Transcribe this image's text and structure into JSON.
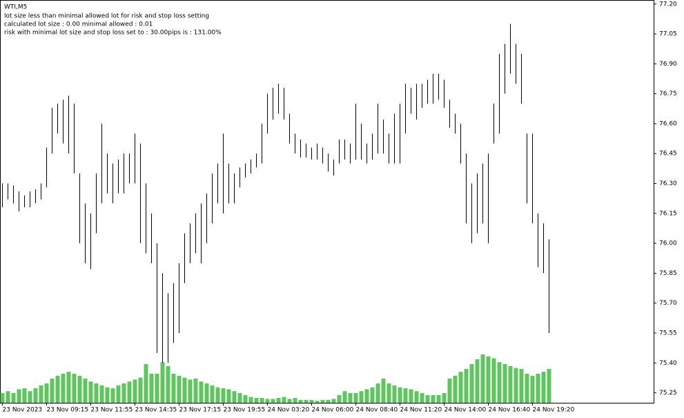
{
  "chart_data": {
    "type": "range_bar",
    "title": "WTI,M5",
    "notes": [
      "lot size less than minimal allowed lot for risk and stop loss setting",
      "calculated lot size : 0.00 minimal allowed : 0.01",
      "risk with minimal lot size and stop loss set to : 30.00pips is : 131.00%"
    ],
    "color": "#000000",
    "volume_color": "#5fc65f",
    "ylim": [
      75.2,
      77.22
    ],
    "yticks": [
      {
        "value": 77.2,
        "label": "77.20"
      },
      77.05,
      {
        "value": 76.9,
        "label": "76.90"
      },
      76.75,
      {
        "value": 76.6,
        "label": "76.60"
      },
      76.45,
      {
        "value": 76.3,
        "label": "76.30"
      },
      76.15,
      {
        "value": 76.0,
        "label": "76.00"
      },
      75.85,
      {
        "value": 75.7,
        "label": "75.70"
      },
      75.55,
      {
        "value": 75.4,
        "label": "75.40"
      },
      75.25
    ],
    "xticks": [
      {
        "value": 0,
        "label": "23 Nov 2023"
      },
      {
        "value": 8,
        "label": "23 Nov 09:15"
      },
      {
        "value": 16,
        "label": "23 Nov 11:55"
      },
      {
        "value": 24,
        "label": "23 Nov 14:35"
      },
      {
        "value": 32,
        "label": "23 Nov 17:15"
      },
      {
        "value": 40,
        "label": "23 Nov 19:55"
      },
      {
        "value": 48,
        "label": "24 Nov 03:20"
      },
      {
        "value": 56,
        "label": "24 Nov 06:00"
      },
      {
        "value": 64,
        "label": "24 Nov 08:40"
      },
      {
        "value": 72,
        "label": "24 Nov 11:20"
      },
      {
        "value": 80,
        "label": "24 Nov 14:00"
      },
      {
        "value": 88,
        "label": "24 Nov 16:40"
      },
      {
        "value": 96,
        "label": "24 Nov 19:20"
      }
    ],
    "high": [
      76.3,
      76.3,
      76.29,
      76.26,
      76.24,
      76.26,
      76.27,
      76.3,
      76.48,
      76.68,
      76.7,
      76.72,
      76.74,
      76.7,
      76.35,
      76.2,
      76.15,
      76.35,
      76.6,
      76.45,
      76.4,
      76.42,
      76.45,
      76.45,
      76.55,
      76.5,
      76.3,
      76.15,
      76.0,
      75.85,
      75.75,
      75.8,
      75.9,
      76.05,
      76.1,
      76.15,
      76.2,
      76.25,
      76.35,
      76.4,
      76.55,
      76.4,
      76.35,
      76.38,
      76.4,
      76.42,
      76.45,
      76.6,
      76.75,
      76.78,
      76.8,
      76.78,
      76.65,
      76.55,
      76.52,
      76.5,
      76.48,
      76.5,
      76.48,
      76.45,
      76.42,
      76.52,
      76.52,
      76.5,
      76.7,
      76.6,
      76.5,
      76.55,
      76.7,
      76.62,
      76.55,
      76.65,
      76.7,
      76.8,
      76.78,
      76.8,
      76.8,
      76.82,
      76.85,
      76.85,
      76.82,
      76.72,
      76.65,
      76.6,
      76.45,
      76.3,
      76.35,
      76.4,
      76.45,
      76.7,
      76.95,
      77.0,
      77.1,
      77.0,
      76.95,
      76.55,
      76.55,
      76.15,
      76.1,
      76.02
    ],
    "low": [
      76.18,
      76.22,
      76.2,
      76.16,
      76.18,
      76.18,
      76.2,
      76.22,
      76.28,
      76.45,
      76.55,
      76.5,
      76.45,
      76.35,
      76.0,
      75.9,
      75.87,
      76.05,
      76.2,
      76.25,
      76.2,
      76.25,
      76.25,
      76.3,
      76.3,
      76.0,
      75.95,
      75.9,
      75.45,
      75.4,
      75.4,
      75.5,
      75.55,
      75.8,
      75.9,
      75.95,
      75.9,
      76.0,
      76.1,
      76.2,
      76.15,
      76.2,
      76.2,
      76.28,
      76.33,
      76.35,
      76.38,
      76.4,
      76.55,
      76.62,
      76.65,
      76.62,
      76.5,
      76.45,
      76.43,
      76.43,
      76.42,
      76.42,
      76.4,
      76.36,
      76.34,
      76.4,
      76.42,
      76.4,
      76.42,
      76.42,
      76.4,
      76.42,
      76.45,
      76.45,
      76.4,
      76.4,
      76.4,
      76.55,
      76.65,
      76.62,
      76.68,
      76.7,
      76.7,
      76.72,
      76.68,
      76.58,
      76.55,
      76.4,
      76.1,
      76.0,
      76.05,
      76.1,
      76.0,
      76.5,
      76.55,
      76.75,
      76.85,
      76.8,
      76.7,
      76.2,
      76.1,
      75.88,
      75.85,
      75.55
    ],
    "volume": [
      10,
      12,
      10,
      14,
      15,
      12,
      15,
      18,
      20,
      25,
      28,
      30,
      32,
      30,
      28,
      25,
      22,
      20,
      18,
      16,
      15,
      18,
      20,
      22,
      24,
      26,
      40,
      30,
      30,
      42,
      38,
      30,
      28,
      26,
      24,
      25,
      22,
      20,
      18,
      16,
      15,
      14,
      12,
      10,
      8,
      6,
      5,
      5,
      4,
      4,
      5,
      6,
      4,
      5,
      3,
      3,
      3,
      2,
      3,
      3,
      4,
      8,
      12,
      10,
      10,
      12,
      14,
      16,
      20,
      25,
      20,
      18,
      16,
      15,
      14,
      12,
      10,
      8,
      8,
      8,
      10,
      25,
      28,
      32,
      35,
      40,
      45,
      50,
      48,
      46,
      42,
      40,
      38,
      36,
      35,
      30,
      28,
      30,
      32,
      35
    ]
  }
}
